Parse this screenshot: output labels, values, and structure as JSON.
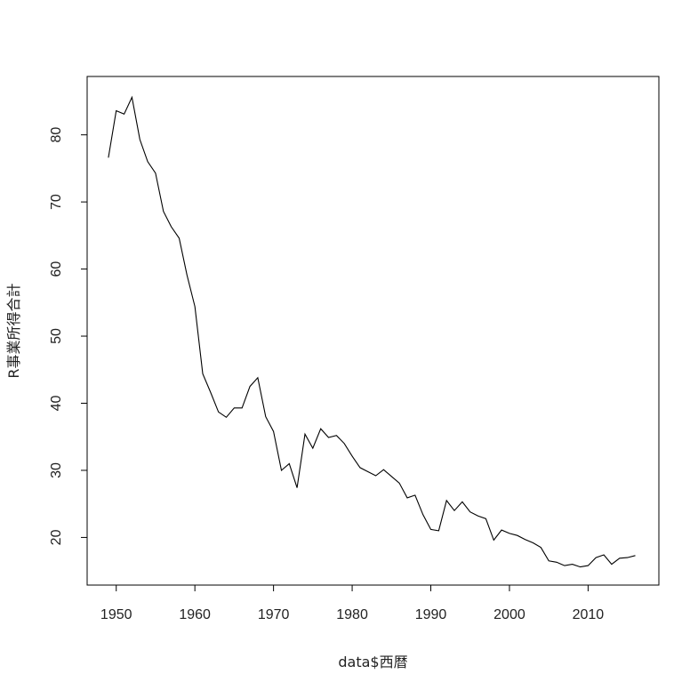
{
  "chart_data": {
    "type": "line",
    "title": "",
    "xlabel": "data$西暦",
    "ylabel": "R事業所得合計",
    "xlim": [
      1946.3,
      2019.0
    ],
    "ylim": [
      12.9,
      88.7
    ],
    "xticks": [
      1950,
      1960,
      1970,
      1980,
      1990,
      2000,
      2010
    ],
    "yticks": [
      20,
      30,
      40,
      50,
      60,
      70,
      80
    ],
    "xtick_labels": [
      "1950",
      "1960",
      "1970",
      "1980",
      "1990",
      "2000",
      "2010"
    ],
    "ytick_labels": [
      "20",
      "30",
      "40",
      "50",
      "60",
      "70",
      "80"
    ],
    "grid": false,
    "line_color": "#000000",
    "series": [
      {
        "x": [
          1949,
          1950,
          1951,
          1952,
          1953,
          1954,
          1955,
          1956,
          1957,
          1958,
          1959,
          1960,
          1961,
          1962,
          1963,
          1964,
          1965,
          1966,
          1967,
          1968,
          1969,
          1970,
          1971,
          1972,
          1973,
          1974,
          1975,
          1976,
          1977,
          1978,
          1979,
          1980,
          1981,
          1982,
          1983,
          1984,
          1985,
          1986,
          1987,
          1988,
          1989,
          1990,
          1991,
          1992,
          1993,
          1994,
          1995,
          1996,
          1997,
          1998,
          1999,
          2000,
          2001,
          2002,
          2003,
          2004,
          2005,
          2006,
          2007,
          2008,
          2009,
          2010,
          2011,
          2012,
          2013,
          2014,
          2015,
          2016
        ],
        "y": [
          76.6,
          83.6,
          83.1,
          85.6,
          79.3,
          76.0,
          74.3,
          68.6,
          66.3,
          64.6,
          59.1,
          54.4,
          44.4,
          41.6,
          38.7,
          37.9,
          39.3,
          39.3,
          42.5,
          43.8,
          38.0,
          35.8,
          30.0,
          31.0,
          27.4,
          35.4,
          33.3,
          36.2,
          34.9,
          35.2,
          34.0,
          32.1,
          30.4,
          29.8,
          29.2,
          30.1,
          29.1,
          28.1,
          25.9,
          26.3,
          23.4,
          21.2,
          21.0,
          25.5,
          24.0,
          25.3,
          23.8,
          23.2,
          22.8,
          19.6,
          21.1,
          20.6,
          20.3,
          19.7,
          19.2,
          18.5,
          16.5,
          16.3,
          15.8,
          16.0,
          15.6,
          15.8,
          17.0,
          17.4,
          16.0,
          16.9,
          17.0,
          17.3
        ]
      }
    ]
  }
}
